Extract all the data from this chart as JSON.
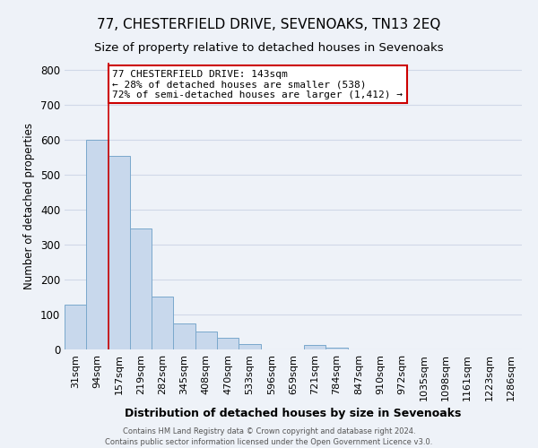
{
  "title": "77, CHESTERFIELD DRIVE, SEVENOAKS, TN13 2EQ",
  "subtitle": "Size of property relative to detached houses in Sevenoaks",
  "xlabel": "Distribution of detached houses by size in Sevenoaks",
  "ylabel": "Number of detached properties",
  "bar_labels": [
    "31sqm",
    "94sqm",
    "157sqm",
    "219sqm",
    "282sqm",
    "345sqm",
    "408sqm",
    "470sqm",
    "533sqm",
    "596sqm",
    "659sqm",
    "721sqm",
    "784sqm",
    "847sqm",
    "910sqm",
    "972sqm",
    "1035sqm",
    "1098sqm",
    "1161sqm",
    "1223sqm",
    "1286sqm"
  ],
  "bar_values": [
    128,
    600,
    553,
    347,
    150,
    75,
    50,
    33,
    15,
    0,
    0,
    12,
    5,
    0,
    0,
    0,
    0,
    0,
    0,
    0,
    0
  ],
  "bar_color": "#c8d8ec",
  "bar_edge_color": "#7aa8cc",
  "ylim": [
    0,
    820
  ],
  "yticks": [
    0,
    100,
    200,
    300,
    400,
    500,
    600,
    700,
    800
  ],
  "annotation_text": "77 CHESTERFIELD DRIVE: 143sqm\n← 28% of detached houses are smaller (538)\n72% of semi-detached houses are larger (1,412) →",
  "annotation_box_color": "#ffffff",
  "annotation_box_edgecolor": "#cc0000",
  "footer_line1": "Contains HM Land Registry data © Crown copyright and database right 2024.",
  "footer_line2": "Contains public sector information licensed under the Open Government Licence v3.0.",
  "background_color": "#eef2f8",
  "grid_color": "#d0d8e8",
  "title_fontsize": 11,
  "subtitle_fontsize": 9.5
}
